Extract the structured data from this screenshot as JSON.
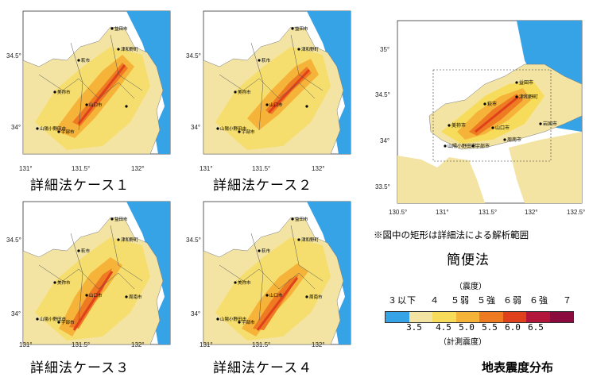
{
  "panels": [
    {
      "id": "case1",
      "caption": "詳細法ケース１",
      "xticks": [
        "131°",
        "131.5°",
        "132°"
      ],
      "yticks": [
        "34.5°",
        "34°"
      ],
      "cities": [
        "益田市",
        "津和野町",
        "萩市",
        "美祢市",
        "山口市",
        "山陽小野田市",
        "宇部市"
      ]
    },
    {
      "id": "case2",
      "caption": "詳細法ケース２",
      "xticks": [
        "131°",
        "131.5°",
        "132°"
      ],
      "yticks": [
        "34.5°",
        "34°"
      ],
      "cities": [
        "益田市",
        "津和野町",
        "萩市",
        "美祢市",
        "山口市",
        "山陽小野田市",
        "宇部市"
      ]
    },
    {
      "id": "case3",
      "caption": "詳細法ケース３",
      "xticks": [
        "131°",
        "131.5°",
        "132°"
      ],
      "yticks": [
        "34.5°",
        "34°"
      ],
      "cities": [
        "益田市",
        "津和野町",
        "萩市",
        "美祢市",
        "山口市",
        "山陽小野田市",
        "宇部市",
        "周南市"
      ]
    },
    {
      "id": "case4",
      "caption": "詳細法ケース４",
      "xticks": [
        "131°",
        "131.5°",
        "132°"
      ],
      "yticks": [
        "34.5°",
        "34°"
      ],
      "cities": [
        "益田市",
        "津和野町",
        "萩市",
        "美祢市",
        "山口市",
        "山陽小野田市",
        "宇部市",
        "周南市"
      ]
    },
    {
      "id": "simple",
      "caption": "簡便法",
      "xticks": [
        "130.5°",
        "131°",
        "131.5°",
        "132°",
        "132.5°"
      ],
      "yticks": [
        "35°",
        "34.5°",
        "34°",
        "33.5°"
      ],
      "cities": [
        "益田市",
        "津和野町",
        "萩市",
        "美祢市",
        "山口市",
        "岩国市",
        "山陽小野田市",
        "宇部市",
        "周南市"
      ]
    }
  ],
  "note": "※図中の矩形は詳細法による解析範囲",
  "legend": {
    "upper_title": "（震度）",
    "intensity_labels": [
      "３以下",
      "４",
      "５弱",
      "５強",
      "６弱",
      "６強",
      "７"
    ],
    "colors": [
      "#36a3e6",
      "#f3e4a4",
      "#f7dc5c",
      "#f6b33a",
      "#ee7a21",
      "#e0411d",
      "#b3163b",
      "#8c0b3f"
    ],
    "ticks": [
      "3.5",
      "4.5",
      "5.0",
      "5.5",
      "6.0",
      "6.5"
    ],
    "lower_title": "（計測震度）"
  },
  "figure_title": "地表震度分布"
}
